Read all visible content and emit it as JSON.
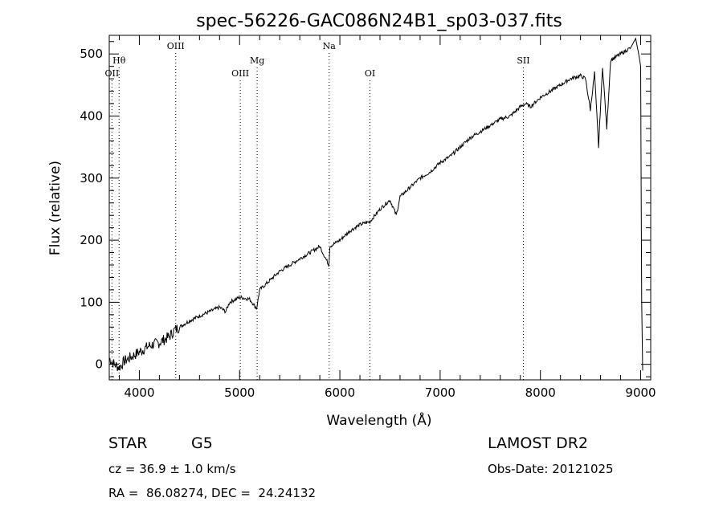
{
  "chart_data": {
    "type": "line",
    "title": "spec-56226-GAC086N24B1_sp03-037.fits",
    "xlabel": "Wavelength (Å)",
    "ylabel": "Flux (relative)",
    "xlim": [
      3700,
      9100
    ],
    "ylim": [
      -25,
      530
    ],
    "xticks": [
      4000,
      5000,
      6000,
      7000,
      8000,
      9000
    ],
    "yticks": [
      0,
      100,
      200,
      300,
      400,
      500
    ],
    "grid": false,
    "legend": "none",
    "series": [
      {
        "x": [
          3700,
          3750,
          3800,
          3850,
          3900,
          3950,
          4000,
          4100,
          4200,
          4300,
          4350,
          4400,
          4500,
          4600,
          4700,
          4800,
          4860,
          4900,
          5000,
          5100,
          5170,
          5200,
          5300,
          5400,
          5500,
          5600,
          5700,
          5800,
          5890,
          5900,
          6000,
          6100,
          6200,
          6300,
          6400,
          6500,
          6563,
          6600,
          6700,
          6800,
          6900,
          7000,
          7100,
          7200,
          7300,
          7400,
          7500,
          7600,
          7700,
          7800,
          7850,
          7900,
          8000,
          8100,
          8200,
          8300,
          8400,
          8450,
          8498,
          8540,
          8580,
          8620,
          8662,
          8700,
          8800,
          8850,
          8900,
          8950,
          8980,
          9000,
          9010,
          9020
        ],
        "values": [
          10,
          0,
          -5,
          5,
          10,
          15,
          20,
          30,
          35,
          45,
          55,
          60,
          70,
          78,
          85,
          92,
          85,
          100,
          108,
          105,
          90,
          120,
          135,
          150,
          160,
          170,
          180,
          190,
          160,
          190,
          200,
          215,
          225,
          230,
          250,
          265,
          240,
          270,
          285,
          300,
          310,
          325,
          335,
          350,
          365,
          375,
          385,
          395,
          400,
          415,
          420,
          415,
          430,
          440,
          450,
          460,
          465,
          460,
          410,
          470,
          350,
          480,
          380,
          490,
          500,
          505,
          510,
          525,
          500,
          480,
          100,
          -10
        ]
      }
    ],
    "line_markers": [
      {
        "label": "OII",
        "x": 3727,
        "level": "low"
      },
      {
        "label": "Hθ",
        "x": 3798,
        "level": "mid"
      },
      {
        "label": "OIII",
        "x": 4363,
        "level": "high"
      },
      {
        "label": "OIII",
        "x": 5007,
        "level": "low"
      },
      {
        "label": "Mg",
        "x": 5175,
        "level": "mid"
      },
      {
        "label": "Na",
        "x": 5893,
        "level": "high"
      },
      {
        "label": "OI",
        "x": 6300,
        "level": "low"
      },
      {
        "label": "SII",
        "x": 7830,
        "level": "mid"
      }
    ]
  },
  "footer": {
    "object_class": "STAR",
    "subclass": "G5",
    "survey": "LAMOST DR2",
    "redshift": "cz = 36.9 ± 1.0 km/s",
    "obs_date": "Obs-Date: 20121025",
    "coords": "RA =  86.08274, DEC =  24.24132"
  }
}
